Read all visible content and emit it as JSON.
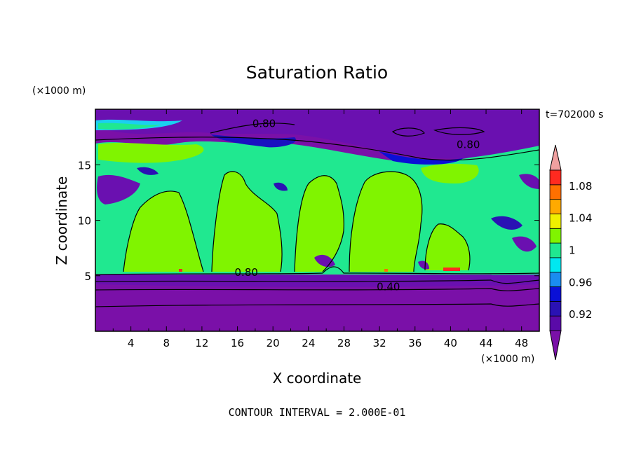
{
  "chart_data": {
    "type": "heatmap",
    "title": "Saturation Ratio",
    "xlabel": "X coordinate",
    "ylabel": "Z coordinate",
    "x_unit": "(×1000 m)",
    "y_unit": "(×1000 m)",
    "time_label": "t=702000 s",
    "footer": "CONTOUR INTERVAL = 2.000E-01",
    "xlim": [
      0,
      50
    ],
    "ylim": [
      0,
      20
    ],
    "x_ticks": [
      4,
      8,
      12,
      16,
      20,
      24,
      28,
      32,
      36,
      40,
      44,
      48
    ],
    "y_ticks": [
      5,
      10,
      15
    ],
    "colorbar": {
      "levels": [
        0.9,
        0.92,
        0.94,
        0.96,
        0.98,
        1.0,
        1.02,
        1.04,
        1.06,
        1.08,
        1.1
      ],
      "tick_labels": [
        "0.92",
        "0.96",
        "1",
        "1.04",
        "1.08"
      ],
      "tick_values": [
        0.92,
        0.96,
        1.0,
        1.04,
        1.08
      ],
      "colors": [
        "#5a0aa8",
        "#2a12b4",
        "#0a10d6",
        "#1a8cf0",
        "#00e8f0",
        "#20e890",
        "#80f400",
        "#f0f000",
        "#ffaa00",
        "#ff7000",
        "#ff2a20"
      ],
      "under_color": "#7a10a8",
      "over_color": "#f0a0a0"
    },
    "contour_labels": [
      {
        "text": "0.80",
        "x": 19.0,
        "y": 18.4
      },
      {
        "text": "0.80",
        "x": 42.0,
        "y": 16.5
      },
      {
        "text": "0.80",
        "x": 17.0,
        "y": 5.0
      },
      {
        "text": "0.40",
        "x": 33.0,
        "y": 3.7
      }
    ]
  }
}
